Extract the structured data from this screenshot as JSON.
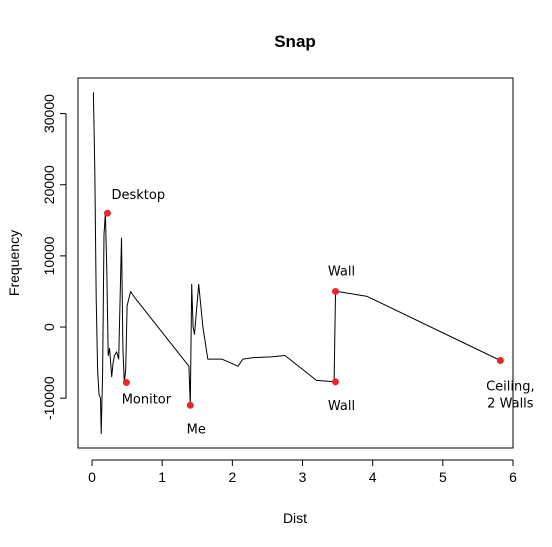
{
  "chart_data": {
    "type": "line",
    "title": "Snap",
    "xlabel": "Dist",
    "ylabel": "Frequency",
    "xlim": [
      -0.2,
      6.0
    ],
    "ylim": [
      -17000,
      35000
    ],
    "xticks": [
      0,
      1,
      2,
      3,
      4,
      5,
      6
    ],
    "xtick_labels": [
      "0",
      "1",
      "2",
      "3",
      "4",
      "5",
      "6"
    ],
    "yticks": [
      -10000,
      0,
      10000,
      20000,
      30000
    ],
    "ytick_labels": [
      "-10000",
      "0",
      "10000",
      "20000",
      "30000"
    ],
    "grid": false,
    "line_color": "#000000",
    "marker_color": "#e8262b",
    "series": [
      {
        "x": [
          0.02,
          0.04,
          0.06,
          0.08,
          0.1,
          0.12,
          0.13,
          0.15,
          0.17,
          0.19,
          0.21,
          0.23,
          0.25,
          0.28,
          0.3,
          0.32,
          0.35,
          0.38,
          0.42,
          0.44,
          0.46,
          0.48,
          0.5,
          0.55,
          0.62,
          1.38,
          1.4,
          1.42,
          1.44,
          1.46,
          1.52,
          1.58,
          1.65,
          1.85,
          2.08,
          2.15,
          2.3,
          2.55,
          2.75,
          3.2,
          3.45,
          3.47,
          3.5,
          3.92,
          5.82
        ],
        "y": [
          33000,
          22000,
          4000,
          -6000,
          -9500,
          -10000,
          -15000,
          -6500,
          13000,
          16000,
          8000,
          -4000,
          -3000,
          -7000,
          -5000,
          -4000,
          -3500,
          -4500,
          12500,
          -3000,
          -7800,
          -6000,
          3000,
          5000,
          4000,
          -5500,
          -11000,
          6000,
          0,
          -1000,
          6000,
          0,
          -4500,
          -4500,
          -5500,
          -4500,
          -4300,
          -4200,
          -4000,
          -7500,
          -7700,
          4700,
          5000,
          4300,
          -4700
        ]
      }
    ],
    "highlighted_points": [
      {
        "label": "Desktop",
        "x": 0.22,
        "y": 16000
      },
      {
        "label": "Monitor",
        "x": 0.49,
        "y": -7800
      },
      {
        "label": "Me",
        "x": 1.4,
        "y": -11000
      },
      {
        "label": "Wall",
        "x": 3.47,
        "y": 5000
      },
      {
        "label": "Wall",
        "x": 3.47,
        "y": -7700
      },
      {
        "label": "Ceiling,\n2 Walls",
        "x": 5.82,
        "y": -4700
      }
    ]
  }
}
